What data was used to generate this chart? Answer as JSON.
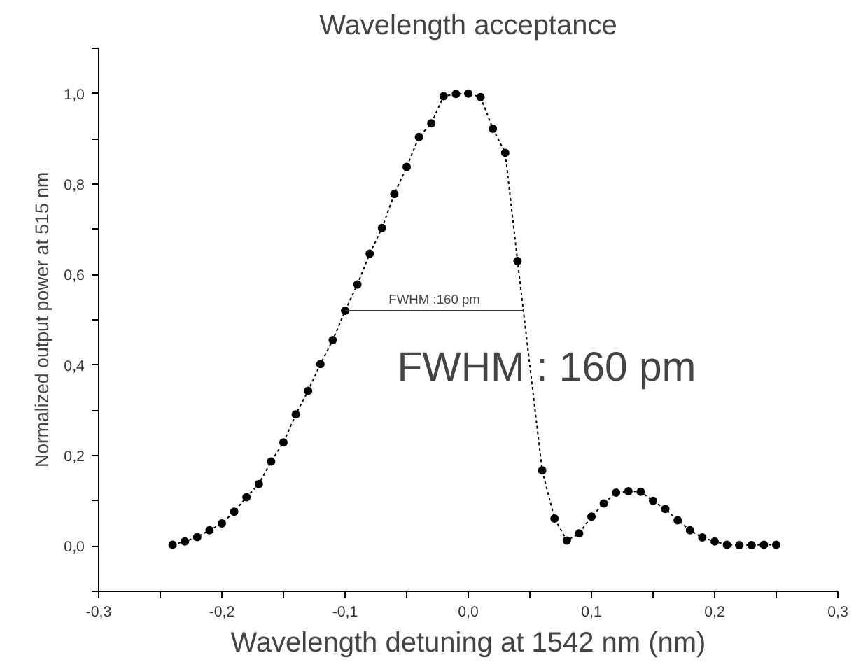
{
  "chart_data": {
    "type": "line",
    "title": "Wavelength acceptance",
    "xlabel": "Wavelength detuning at 1542 nm (nm)",
    "ylabel": "Normalized output power at 515 nm",
    "series": [
      {
        "color": "#000000",
        "marker": "circle",
        "line_style": "dotted",
        "x": [
          -0.24,
          -0.23,
          -0.22,
          -0.21,
          -0.2,
          -0.19,
          -0.18,
          -0.17,
          -0.16,
          -0.15,
          -0.14,
          -0.13,
          -0.12,
          -0.11,
          -0.1,
          -0.09,
          -0.08,
          -0.07,
          -0.06,
          -0.05,
          -0.04,
          -0.03,
          -0.02,
          -0.01,
          0.0,
          0.01,
          0.02,
          0.03,
          0.04,
          0.06,
          0.07,
          0.08,
          0.09,
          0.1,
          0.11,
          0.12,
          0.13,
          0.14,
          0.15,
          0.16,
          0.17,
          0.18,
          0.19,
          0.2,
          0.21,
          0.22,
          0.23,
          0.24,
          0.25
        ],
        "values": [
          0.003,
          0.01,
          0.02,
          0.035,
          0.05,
          0.076,
          0.108,
          0.137,
          0.187,
          0.229,
          0.291,
          0.343,
          0.402,
          0.455,
          0.52,
          0.578,
          0.646,
          0.703,
          0.778,
          0.838,
          0.904,
          0.934,
          0.994,
          0.999,
          1.0,
          0.992,
          0.922,
          0.869,
          0.63,
          0.167,
          0.061,
          0.012,
          0.028,
          0.065,
          0.094,
          0.118,
          0.121,
          0.12,
          0.1,
          0.082,
          0.057,
          0.035,
          0.019,
          0.01,
          0.003,
          0.002,
          0.002,
          0.003,
          0.003
        ]
      },
      {
        "color": "#333333",
        "marker": "none",
        "line_style": "solid",
        "x": [
          -0.1,
          0.045
        ],
        "values": [
          0.52,
          0.52
        ]
      }
    ],
    "annotations": [
      {
        "text": "FWHM :160 pm",
        "x": -0.0275,
        "y": 0.52
      },
      "FWHM : 160 pm"
    ],
    "xlim": [
      -0.3,
      0.3
    ],
    "ylim": [
      -0.1,
      1.1
    ],
    "xticks": [
      {
        "value": -0.3,
        "label": "-0,3"
      },
      {
        "value": -0.25,
        "label": null
      },
      {
        "value": -0.2,
        "label": "-0,2"
      },
      {
        "value": -0.15,
        "label": null
      },
      {
        "value": -0.1,
        "label": "-0,1"
      },
      {
        "value": -0.05,
        "label": null
      },
      {
        "value": 0.0,
        "label": "0,0"
      },
      {
        "value": 0.05,
        "label": null
      },
      {
        "value": 0.1,
        "label": "0,1"
      },
      {
        "value": 0.15,
        "label": null
      },
      {
        "value": 0.2,
        "label": "0,2"
      },
      {
        "value": 0.25,
        "label": null
      },
      {
        "value": 0.3,
        "label": "0,3"
      }
    ],
    "yticks": [
      {
        "value": -0.1,
        "label": null
      },
      {
        "value": 0.0,
        "label": "0,0"
      },
      {
        "value": 0.1,
        "label": null
      },
      {
        "value": 0.2,
        "label": "0,2"
      },
      {
        "value": 0.3,
        "label": null
      },
      {
        "value": 0.4,
        "label": "0,4"
      },
      {
        "value": 0.5,
        "label": null
      },
      {
        "value": 0.6,
        "label": "0,6"
      },
      {
        "value": 0.7,
        "label": null
      },
      {
        "value": 0.8,
        "label": "0,8"
      },
      {
        "value": 0.9,
        "label": null
      },
      {
        "value": 1.0,
        "label": "1,0"
      },
      {
        "value": 1.1,
        "label": null
      }
    ],
    "grid": false
  }
}
